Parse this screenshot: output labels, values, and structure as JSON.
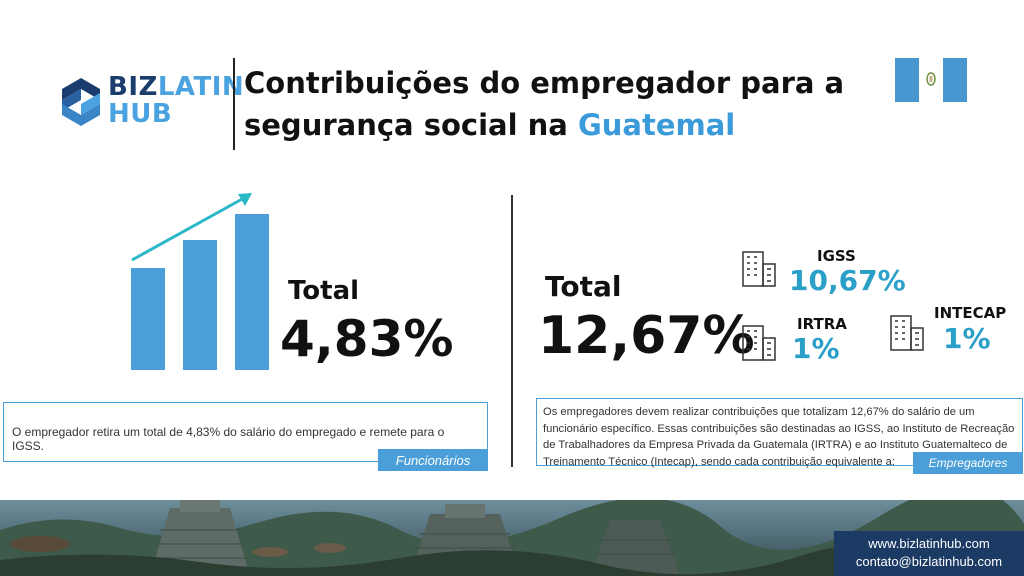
{
  "brand": {
    "logo_part1": "BIZ",
    "logo_part2": "LATIN",
    "logo_line2": "HUB"
  },
  "header": {
    "title_line1": "Contribuições do empregador para a",
    "title_line2_start": "segurança social na ",
    "title_accent": "Guatemal"
  },
  "colors": {
    "accent_blue": "#4a9fd8",
    "accent_teal": "#2aa0c9",
    "navy": "#1b3a64"
  },
  "employee": {
    "total_label": "Total",
    "total_value": "4,83%",
    "description": "O empregador retira um total de 4,83% do salário do empregado e remete para o IGSS.",
    "tag": "Funcionários"
  },
  "employer": {
    "total_label": "Total",
    "total_value": "12,67%",
    "description": "Os empregadores devem realizar contribuições que totalizam 12,67% do salário de um funcionário específico. Essas contribuições são destinadas ao IGSS, ao Instituto de Recreação de Trabalhadores da Empresa Privada da Guatemala (IRTRA) e ao Instituto Guatemalteco de Treinamento Técnico (Intecap), sendo cada contribuição equivalente a:",
    "tag": "Empregadores",
    "institutions": [
      {
        "name": "IGSS",
        "value": "10,67%",
        "icon": "building-icon"
      },
      {
        "name": "IRTRA",
        "value": "1%",
        "icon": "building-icon"
      },
      {
        "name": "INTECAP",
        "value": "1%",
        "icon": "building-icon"
      }
    ]
  },
  "footer": {
    "website": "www.bizlatinhub.com",
    "email": "contato@bizlatinhub.com"
  }
}
